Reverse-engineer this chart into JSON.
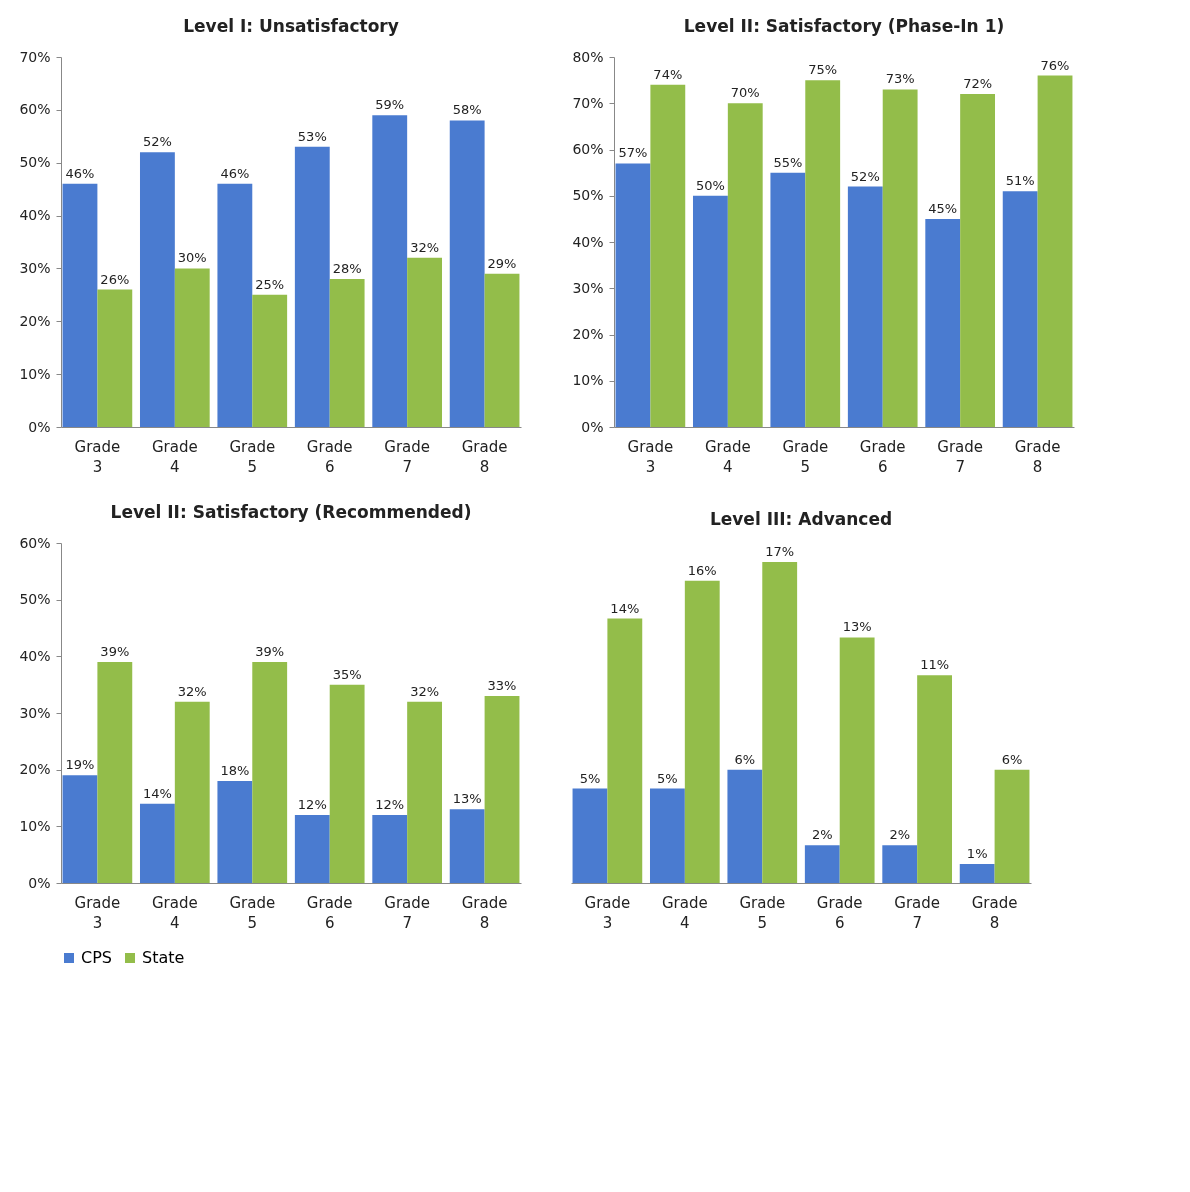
{
  "chart_data": [
    {
      "type": "bar",
      "title": "Level I: Unsatisfactory",
      "categories": [
        "Grade 3",
        "Grade 4",
        "Grade 5",
        "Grade 6",
        "Grade 7",
        "Grade 8"
      ],
      "legend": "bottom",
      "ylim": [
        0,
        70
      ],
      "yticks": [
        {
          "value": 0,
          "label": "0%"
        },
        {
          "value": 10,
          "label": "10%"
        },
        {
          "value": 20,
          "label": "20%"
        },
        {
          "value": 30,
          "label": "30%"
        },
        {
          "value": 40,
          "label": "40%"
        },
        {
          "value": 50,
          "label": "50%"
        },
        {
          "value": 60,
          "label": "60%"
        },
        {
          "value": 70,
          "label": "70%"
        }
      ],
      "series": [
        {
          "name": "CPS",
          "color": "#4a7bd0",
          "values": [
            46,
            52,
            46,
            53,
            59,
            58
          ],
          "value_labels": [
            "46%",
            "52%",
            "46%",
            "53%",
            "59%",
            "58%"
          ]
        },
        {
          "name": "State",
          "color": "#93bd4a",
          "values": [
            26,
            30,
            25,
            28,
            32,
            29
          ],
          "value_labels": [
            "26%",
            "30%",
            "25%",
            "28%",
            "32%",
            "29%"
          ]
        }
      ]
    },
    {
      "type": "bar",
      "title": "Level II: Satisfactory (Phase-In 1)",
      "categories": [
        "Grade 3",
        "Grade 4",
        "Grade 5",
        "Grade 6",
        "Grade 7",
        "Grade 8"
      ],
      "ylim": [
        0,
        80
      ],
      "yticks": [
        {
          "value": 0,
          "label": "0%"
        },
        {
          "value": 10,
          "label": "10%"
        },
        {
          "value": 20,
          "label": "20%"
        },
        {
          "value": 30,
          "label": "30%"
        },
        {
          "value": 40,
          "label": "40%"
        },
        {
          "value": 50,
          "label": "50%"
        },
        {
          "value": 60,
          "label": "60%"
        },
        {
          "value": 70,
          "label": "70%"
        },
        {
          "value": 80,
          "label": "80%"
        }
      ],
      "series": [
        {
          "name": "CPS",
          "color": "#4a7bd0",
          "values": [
            57,
            50,
            55,
            52,
            45,
            51
          ],
          "value_labels": [
            "57%",
            "50%",
            "55%",
            "52%",
            "45%",
            "51%"
          ]
        },
        {
          "name": "State",
          "color": "#93bd4a",
          "values": [
            74,
            70,
            75,
            73,
            72,
            76
          ],
          "value_labels": [
            "74%",
            "70%",
            "75%",
            "73%",
            "72%",
            "76%"
          ]
        }
      ]
    },
    {
      "type": "bar",
      "title": "Level II: Satisfactory (Recommended)",
      "categories": [
        "Grade 3",
        "Grade 4",
        "Grade 5",
        "Grade 6",
        "Grade 7",
        "Grade 8"
      ],
      "ylim": [
        0,
        60
      ],
      "yticks": [
        {
          "value": 0,
          "label": "0%"
        },
        {
          "value": 10,
          "label": "10%"
        },
        {
          "value": 20,
          "label": "20%"
        },
        {
          "value": 30,
          "label": "30%"
        },
        {
          "value": 40,
          "label": "40%"
        },
        {
          "value": 50,
          "label": "50%"
        },
        {
          "value": 60,
          "label": "60%"
        }
      ],
      "series": [
        {
          "name": "CPS",
          "color": "#4a7bd0",
          "values": [
            19,
            14,
            18,
            12,
            12,
            13
          ],
          "value_labels": [
            "19%",
            "14%",
            "18%",
            "12%",
            "12%",
            "13%"
          ]
        },
        {
          "name": "State",
          "color": "#93bd4a",
          "values": [
            39,
            32,
            39,
            35,
            32,
            33
          ],
          "value_labels": [
            "39%",
            "32%",
            "39%",
            "35%",
            "32%",
            "33%"
          ]
        }
      ]
    },
    {
      "type": "bar",
      "title": "Level III: Advanced",
      "categories": [
        "Grade 3",
        "Grade 4",
        "Grade 5",
        "Grade 6",
        "Grade 7",
        "Grade 8"
      ],
      "tick_labels": "x",
      "series": [
        {
          "name": "CPS",
          "color": "#4a7bd0",
          "values": [
            5,
            5,
            6,
            2,
            2,
            1
          ],
          "value_labels": [
            "5%",
            "5%",
            "6%",
            "2%",
            "2%",
            "1%"
          ]
        },
        {
          "name": "State",
          "color": "#93bd4a",
          "values": [
            14,
            16,
            17,
            13,
            11,
            6
          ],
          "value_labels": [
            "14%",
            "16%",
            "17%",
            "13%",
            "11%",
            "6%"
          ]
        }
      ]
    }
  ]
}
